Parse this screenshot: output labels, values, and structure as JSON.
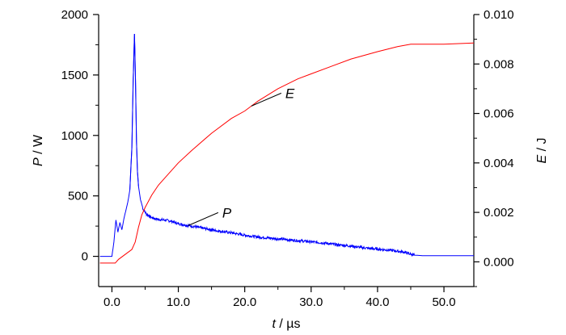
{
  "chart_data": {
    "type": "line",
    "title": "",
    "xlabel": {
      "var": "t",
      "unit": " / µs"
    },
    "ylabel_left": {
      "var": "P",
      "unit": " / W"
    },
    "ylabel_right": {
      "var": "E",
      "unit": " / J"
    },
    "xlim": [
      -2,
      54.5
    ],
    "ylim_left": [
      -250,
      2000
    ],
    "ylim_right": [
      -0.001,
      0.01
    ],
    "x_ticks": [
      0,
      10,
      20,
      30,
      40,
      50
    ],
    "x_tick_labels": [
      "0.0",
      "10.0",
      "20.0",
      "30.0",
      "40.0",
      "50.0"
    ],
    "y_left_ticks": [
      0,
      500,
      1000,
      1500,
      2000
    ],
    "y_left_tick_labels": [
      "0",
      "500",
      "1000",
      "1500",
      "2000"
    ],
    "y_right_ticks": [
      0,
      0.002,
      0.004,
      0.006,
      0.008,
      0.01
    ],
    "y_right_tick_labels": [
      "0.000",
      "0.002",
      "0.004",
      "0.006",
      "0.008",
      "0.010"
    ],
    "grid": false,
    "legend": "none",
    "series": [
      {
        "name": "P",
        "axis": "left",
        "color": "#0000ff",
        "x": [
          -1.8,
          0.0,
          0.3,
          0.6,
          0.9,
          1.2,
          1.5,
          1.8,
          2.1,
          2.4,
          2.7,
          3.0,
          3.2,
          3.4,
          3.55,
          3.7,
          3.85,
          4.0,
          4.3,
          4.7,
          5.2,
          6.0,
          7.0,
          8.0,
          9.0,
          10.0,
          12.0,
          14.0,
          16.0,
          18.0,
          20.0,
          22.0,
          24.0,
          26.0,
          28.0,
          30.0,
          32.0,
          34.0,
          36.0,
          38.0,
          40.0,
          42.0,
          44.0,
          45.5,
          47.0,
          50.0,
          54.5
        ],
        "y": [
          0,
          0,
          120,
          300,
          200,
          280,
          220,
          310,
          380,
          450,
          550,
          900,
          1450,
          1840,
          1450,
          950,
          700,
          580,
          470,
          390,
          350,
          320,
          305,
          300,
          290,
          270,
          250,
          230,
          210,
          195,
          175,
          160,
          150,
          140,
          130,
          120,
          110,
          95,
          85,
          70,
          60,
          50,
          35,
          10,
          5,
          5,
          5
        ]
      },
      {
        "name": "E",
        "axis": "right",
        "color": "#ff0000",
        "x": [
          -1.8,
          0.5,
          1.0,
          2.0,
          3.0,
          3.5,
          4.0,
          4.5,
          5.0,
          6.0,
          7.0,
          8.0,
          10.0,
          12.0,
          15.0,
          18.0,
          20.0,
          22.0,
          25.0,
          28.0,
          30.0,
          33.0,
          36.0,
          40.0,
          43.0,
          45.0,
          47.0,
          50.0,
          54.5
        ],
        "y": [
          -5e-05,
          -5e-05,
          0.0001,
          0.0003,
          0.0005,
          0.0008,
          0.0014,
          0.0019,
          0.0022,
          0.0027,
          0.0031,
          0.0034,
          0.004,
          0.0045,
          0.0052,
          0.0058,
          0.0061,
          0.0065,
          0.007,
          0.0074,
          0.0076,
          0.0079,
          0.0082,
          0.0085,
          0.0087,
          0.0088,
          0.0088,
          0.0088,
          0.00885
        ]
      }
    ],
    "annotations": [
      {
        "text": "E",
        "series": "E",
        "at_x": 21.0
      },
      {
        "text": "P",
        "series": "P",
        "at_x": 11.5
      }
    ]
  }
}
